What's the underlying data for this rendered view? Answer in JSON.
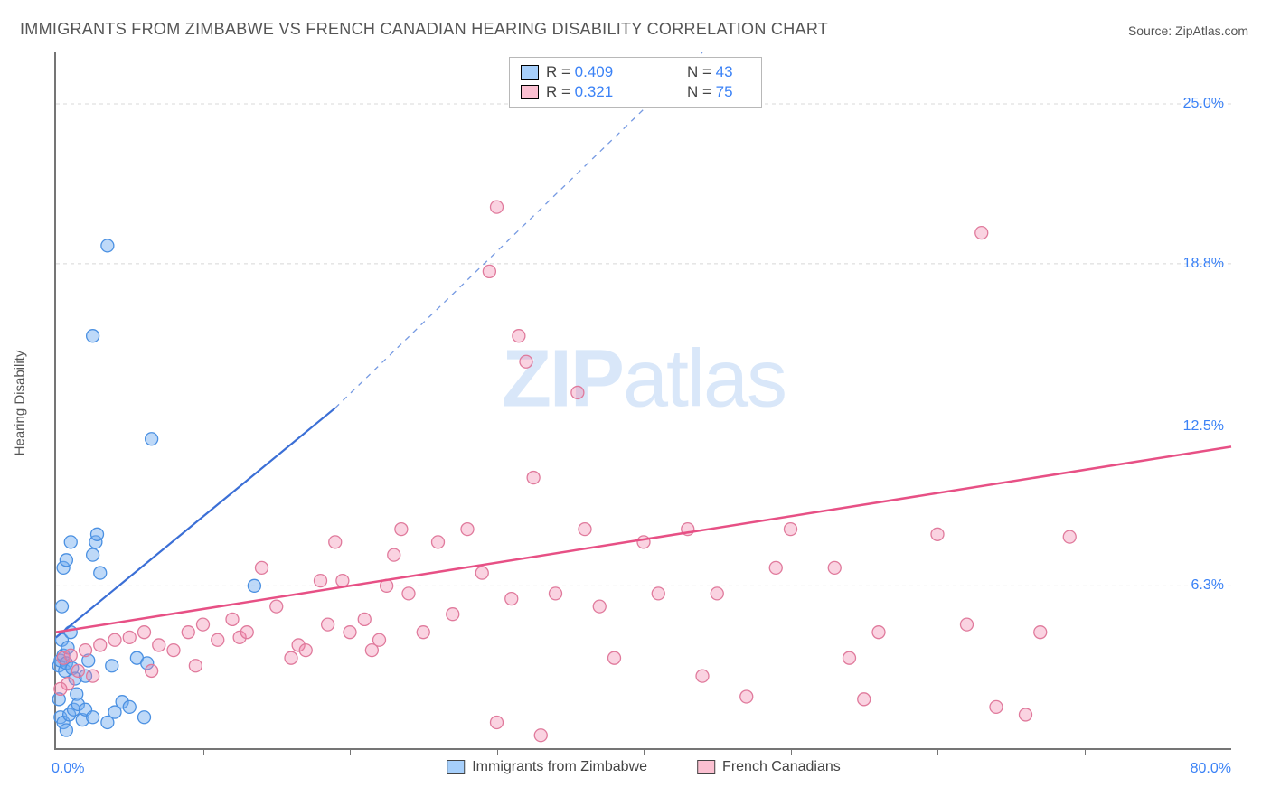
{
  "title": "IMMIGRANTS FROM ZIMBABWE VS FRENCH CANADIAN HEARING DISABILITY CORRELATION CHART",
  "source_label": "Source: ",
  "source_name": "ZipAtlas.com",
  "watermark_a": "ZIP",
  "watermark_b": "atlas",
  "ylabel": "Hearing Disability",
  "chart": {
    "type": "scatter",
    "xlim": [
      0,
      80
    ],
    "ylim": [
      0,
      27
    ],
    "x_label_min": "0.0%",
    "x_label_max": "80.0%",
    "y_ticks": [
      6.3,
      12.5,
      18.8,
      25.0
    ],
    "y_tick_labels": [
      "6.3%",
      "12.5%",
      "18.8%",
      "25.0%"
    ],
    "x_minor_ticks": [
      10,
      20,
      30,
      40,
      50,
      60,
      70
    ],
    "background_color": "#ffffff",
    "grid_color": "#d8d8d8",
    "axis_color": "#757575",
    "series": [
      {
        "name": "Immigrants from Zimbabwe",
        "point_fill": "rgba(110,170,240,0.45)",
        "point_stroke": "#4a90e2",
        "R": "0.409",
        "N": "43",
        "line_color": "#3b6fd6",
        "line_width": 2.2,
        "trend_solid": {
          "x1": 0,
          "y1": 4.3,
          "x2": 19,
          "y2": 13.2
        },
        "trend_dash": {
          "x1": 19,
          "y1": 13.2,
          "x2": 44,
          "y2": 27
        },
        "points": [
          [
            0.2,
            3.2
          ],
          [
            0.3,
            3.4
          ],
          [
            0.5,
            3.6
          ],
          [
            0.4,
            4.2
          ],
          [
            0.6,
            3.0
          ],
          [
            0.7,
            3.3
          ],
          [
            0.8,
            3.9
          ],
          [
            1.0,
            4.5
          ],
          [
            1.1,
            3.1
          ],
          [
            1.3,
            2.7
          ],
          [
            1.4,
            2.1
          ],
          [
            0.2,
            1.9
          ],
          [
            0.3,
            1.2
          ],
          [
            0.5,
            1.0
          ],
          [
            0.7,
            0.7
          ],
          [
            0.9,
            1.3
          ],
          [
            1.2,
            1.5
          ],
          [
            1.5,
            1.7
          ],
          [
            1.8,
            1.1
          ],
          [
            2.0,
            2.8
          ],
          [
            2.2,
            3.4
          ],
          [
            2.5,
            7.5
          ],
          [
            2.7,
            8.0
          ],
          [
            2.8,
            8.3
          ],
          [
            3.0,
            6.8
          ],
          [
            0.5,
            7.0
          ],
          [
            0.7,
            7.3
          ],
          [
            1.0,
            8.0
          ],
          [
            0.4,
            5.5
          ],
          [
            2.0,
            1.5
          ],
          [
            2.5,
            1.2
          ],
          [
            3.5,
            1.0
          ],
          [
            4.0,
            1.4
          ],
          [
            4.5,
            1.8
          ],
          [
            5.0,
            1.6
          ],
          [
            6.0,
            1.2
          ],
          [
            13.5,
            6.3
          ],
          [
            6.5,
            12.0
          ],
          [
            3.5,
            19.5
          ],
          [
            2.5,
            16.0
          ],
          [
            5.5,
            3.5
          ],
          [
            6.2,
            3.3
          ],
          [
            3.8,
            3.2
          ]
        ]
      },
      {
        "name": "French Canadians",
        "point_fill": "rgba(240,130,170,0.35)",
        "point_stroke": "#e07a9c",
        "R": "0.321",
        "N": "75",
        "line_color": "#e75085",
        "line_width": 2.5,
        "trend_solid": {
          "x1": 0,
          "y1": 4.5,
          "x2": 80,
          "y2": 11.7
        },
        "points": [
          [
            0.5,
            3.5
          ],
          [
            1.0,
            3.6
          ],
          [
            2.0,
            3.8
          ],
          [
            3.0,
            4.0
          ],
          [
            4.0,
            4.2
          ],
          [
            5.0,
            4.3
          ],
          [
            6.0,
            4.5
          ],
          [
            7.0,
            4.0
          ],
          [
            8.0,
            3.8
          ],
          [
            9.0,
            4.5
          ],
          [
            10.0,
            4.8
          ],
          [
            11.0,
            4.2
          ],
          [
            12.0,
            5.0
          ],
          [
            12.5,
            4.3
          ],
          [
            13.0,
            4.5
          ],
          [
            14.0,
            7.0
          ],
          [
            15.0,
            5.5
          ],
          [
            16.0,
            3.5
          ],
          [
            16.5,
            4.0
          ],
          [
            17.0,
            3.8
          ],
          [
            18.0,
            6.5
          ],
          [
            19.0,
            8.0
          ],
          [
            20.0,
            4.5
          ],
          [
            21.0,
            5.0
          ],
          [
            21.5,
            3.8
          ],
          [
            22.0,
            4.2
          ],
          [
            23.0,
            7.5
          ],
          [
            23.5,
            8.5
          ],
          [
            24.0,
            6.0
          ],
          [
            25.0,
            4.5
          ],
          [
            26.0,
            8.0
          ],
          [
            27.0,
            5.2
          ],
          [
            28.0,
            8.5
          ],
          [
            29.0,
            6.8
          ],
          [
            29.5,
            18.5
          ],
          [
            30.0,
            21.0
          ],
          [
            31.0,
            5.8
          ],
          [
            31.5,
            16.0
          ],
          [
            32.0,
            15.0
          ],
          [
            32.5,
            10.5
          ],
          [
            34.0,
            6.0
          ],
          [
            35.5,
            13.8
          ],
          [
            36.0,
            8.5
          ],
          [
            37.0,
            5.5
          ],
          [
            38.0,
            3.5
          ],
          [
            40.0,
            8.0
          ],
          [
            41.0,
            6.0
          ],
          [
            43.0,
            8.5
          ],
          [
            44.0,
            2.8
          ],
          [
            45.0,
            6.0
          ],
          [
            49.0,
            7.0
          ],
          [
            30.0,
            1.0
          ],
          [
            33.0,
            0.5
          ],
          [
            53.0,
            7.0
          ],
          [
            54.0,
            3.5
          ],
          [
            55.0,
            1.9
          ],
          [
            56.0,
            4.5
          ],
          [
            60.0,
            8.3
          ],
          [
            62.0,
            4.8
          ],
          [
            63.0,
            20.0
          ],
          [
            64.0,
            1.6
          ],
          [
            66.0,
            1.3
          ],
          [
            67.0,
            4.5
          ],
          [
            69.0,
            8.2
          ],
          [
            50.0,
            8.5
          ],
          [
            18.5,
            4.8
          ],
          [
            9.5,
            3.2
          ],
          [
            6.5,
            3.0
          ],
          [
            2.5,
            2.8
          ],
          [
            1.5,
            3.0
          ],
          [
            0.8,
            2.5
          ],
          [
            0.3,
            2.3
          ],
          [
            47.0,
            2.0
          ],
          [
            19.5,
            6.5
          ],
          [
            22.5,
            6.3
          ]
        ]
      }
    ]
  },
  "stats_labels": {
    "R": "R =",
    "N": "N ="
  }
}
